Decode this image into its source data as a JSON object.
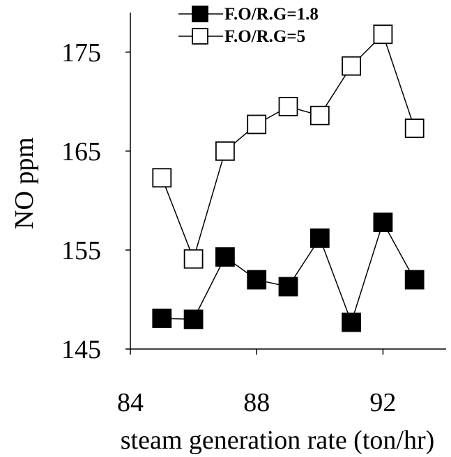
{
  "chart_data": {
    "type": "line",
    "xlabel": "steam generation rate (ton/hr)",
    "ylabel": "NO ppm",
    "xlim": [
      84,
      94
    ],
    "ylim": [
      145,
      179
    ],
    "xticks": [
      84,
      88,
      92
    ],
    "yticks": [
      145,
      155,
      165,
      175
    ],
    "grid": false,
    "legend_position": "top-center",
    "series": [
      {
        "name": "F.O/R.G=1.8",
        "marker": "filled-square",
        "color": "#000000",
        "x": [
          85,
          86,
          87,
          88,
          89,
          90,
          91,
          92,
          93
        ],
        "y": [
          148.1,
          148.0,
          154.3,
          152.0,
          151.3,
          156.2,
          147.7,
          157.8,
          152.0
        ]
      },
      {
        "name": "F.O/R.G=5",
        "marker": "open-square",
        "color": "#000000",
        "x": [
          85,
          86,
          87,
          88,
          89,
          90,
          91,
          92,
          93
        ],
        "y": [
          162.3,
          154.1,
          165.0,
          167.7,
          169.5,
          168.6,
          173.6,
          176.8,
          167.3
        ]
      }
    ]
  }
}
